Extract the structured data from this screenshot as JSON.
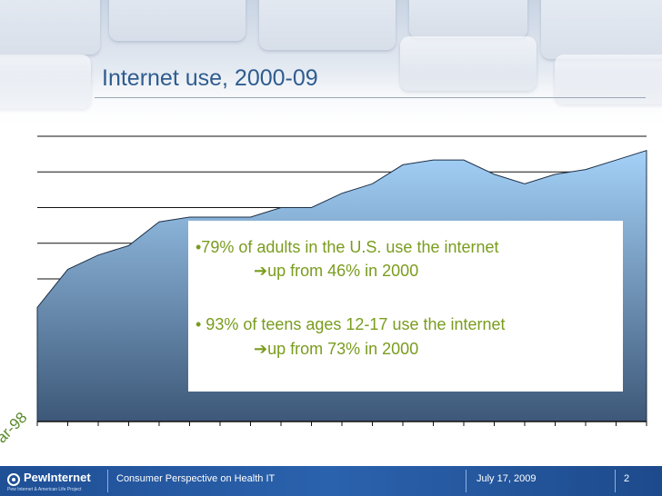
{
  "slide": {
    "title": "Internet use, 2000-09",
    "page_number": "2"
  },
  "callout": {
    "line1": "•79% of adults in the U.S. use the internet",
    "line2": "up from 46% in 2000",
    "line3": "• 93% of teens ages 12-17 use the internet",
    "line4": "up from 73% in 2000",
    "arrow_glyph": "➔"
  },
  "footer": {
    "logo_text": "PewInternet",
    "logo_subtext": "Pew Internet & American Life Project",
    "presentation": "Consumer Perspective on Health IT",
    "date": "July 17, 2009"
  },
  "chart_data": {
    "type": "area",
    "title": "",
    "xlabel": "",
    "ylabel": "",
    "visible_tick_label": "ar-98",
    "values": [
      44,
      52,
      55,
      57,
      62,
      63,
      63,
      63,
      65,
      65,
      68,
      70,
      74,
      75,
      75,
      72,
      70,
      72,
      73,
      75,
      77
    ],
    "ylim": [
      20,
      80
    ],
    "grid": true,
    "colors": {
      "fill_top": "#a4d1f8",
      "fill_bottom": "#3d5878",
      "edge": "#1e3147"
    }
  }
}
